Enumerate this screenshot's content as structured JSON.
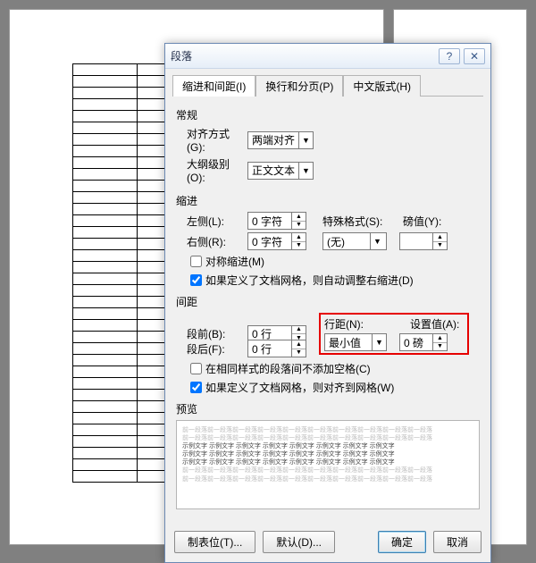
{
  "dialog": {
    "title": "段落",
    "help_icon": "?",
    "close_icon": "✕",
    "tabs": [
      {
        "label": "缩进和间距(I)",
        "hotkey": "I",
        "active": true
      },
      {
        "label": "换行和分页(P)",
        "hotkey": "P",
        "active": false
      },
      {
        "label": "中文版式(H)",
        "hotkey": "H",
        "active": false
      }
    ],
    "general": {
      "heading": "常规",
      "align_label": "对齐方式(G):",
      "align_value": "两端对齐",
      "outline_label": "大纲级别(O):",
      "outline_value": "正文文本"
    },
    "indent": {
      "heading": "缩进",
      "left_label": "左侧(L):",
      "left_value": "0 字符",
      "right_label": "右侧(R):",
      "right_value": "0 字符",
      "special_label": "特殊格式(S):",
      "special_value": "(无)",
      "by_label": "磅值(Y):",
      "by_value": "",
      "mirror_cb": "对称缩进(M)",
      "mirror_checked": false,
      "grid_cb": "如果定义了文档网格，则自动调整右缩进(D)",
      "grid_checked": true
    },
    "spacing": {
      "heading": "间距",
      "before_label": "段前(B):",
      "before_value": "0 行",
      "after_label": "段后(F):",
      "after_value": "0 行",
      "line_label": "行距(N):",
      "line_value": "最小值",
      "at_label": "设置值(A):",
      "at_value": "0 磅",
      "nospace_cb": "在相同样式的段落间不添加空格(C)",
      "nospace_checked": false,
      "snap_cb": "如果定义了文档网格，则对齐到网格(W)",
      "snap_checked": true
    },
    "preview": {
      "heading": "预览",
      "placeholder_line": "前一段落前一段落前一段落前一段落前一段落前一段落前一段落前一段落前一段落前一段落",
      "sample_line": "示例文字 示例文字 示例文字 示例文字 示例文字 示例文字 示例文字 示例文字"
    },
    "buttons": {
      "tabs": "制表位(T)...",
      "default": "默认(D)...",
      "ok": "确定",
      "cancel": "取消"
    }
  },
  "highlight_color": "#e60000"
}
